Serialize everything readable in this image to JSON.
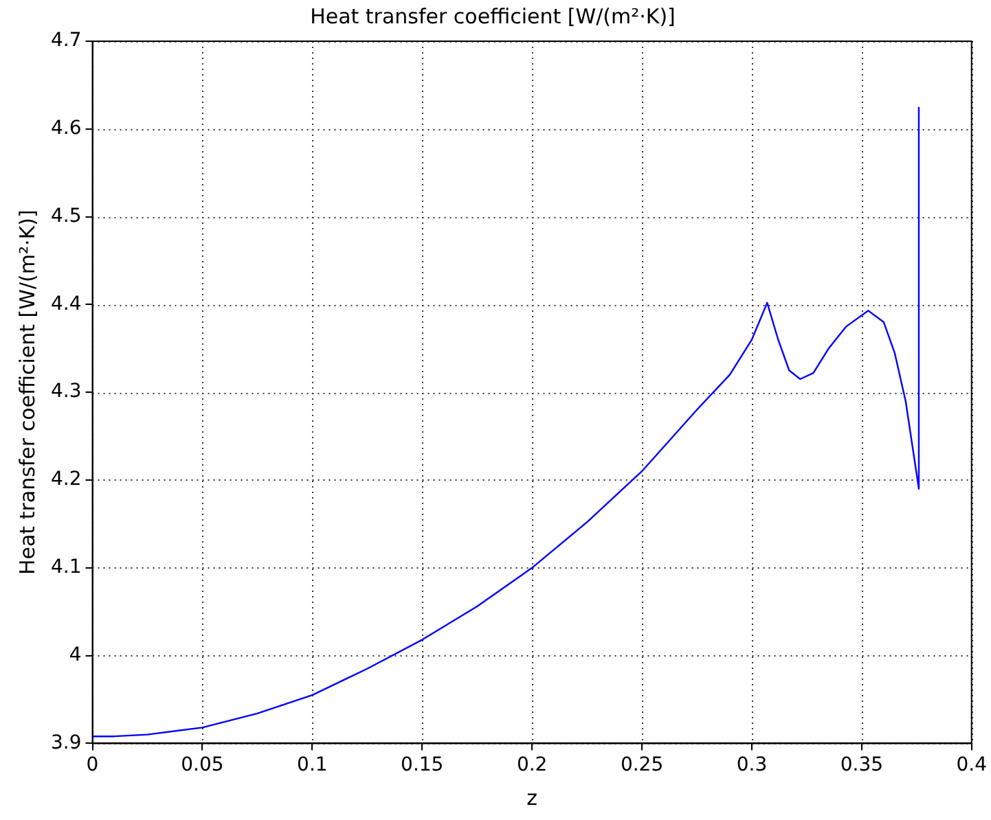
{
  "chart_data": {
    "type": "line",
    "title": "Heat transfer coefficient [W/(m²·K)]",
    "xlabel": "z",
    "ylabel": "Heat transfer coefficient [W/(m²·K)]",
    "x": [
      0,
      0.01,
      0.025,
      0.05,
      0.075,
      0.1,
      0.125,
      0.15,
      0.175,
      0.2,
      0.225,
      0.25,
      0.275,
      0.29,
      0.3,
      0.307,
      0.312,
      0.317,
      0.322,
      0.328,
      0.335,
      0.343,
      0.353,
      0.36,
      0.365,
      0.37,
      0.376,
      0.376
    ],
    "series": [
      {
        "color": "#0000ff",
        "values": [
          3.908,
          3.908,
          3.91,
          3.918,
          3.934,
          3.955,
          3.985,
          4.018,
          4.056,
          4.1,
          4.152,
          4.21,
          4.28,
          4.32,
          4.36,
          4.402,
          4.36,
          4.325,
          4.315,
          4.322,
          4.35,
          4.375,
          4.393,
          4.38,
          4.345,
          4.29,
          4.19,
          4.625
        ]
      }
    ],
    "xlim": [
      0,
      0.4
    ],
    "xticks": [
      0,
      0.05,
      0.1,
      0.15,
      0.2,
      0.25,
      0.3,
      0.35,
      0.4
    ],
    "ylim": [
      3.9,
      4.7
    ],
    "yticks": [
      3.9,
      4,
      4.1,
      4.2,
      4.3,
      4.4,
      4.5,
      4.6,
      4.7
    ],
    "grid": true,
    "legend": false,
    "marker": "none",
    "line_style": "solid"
  }
}
